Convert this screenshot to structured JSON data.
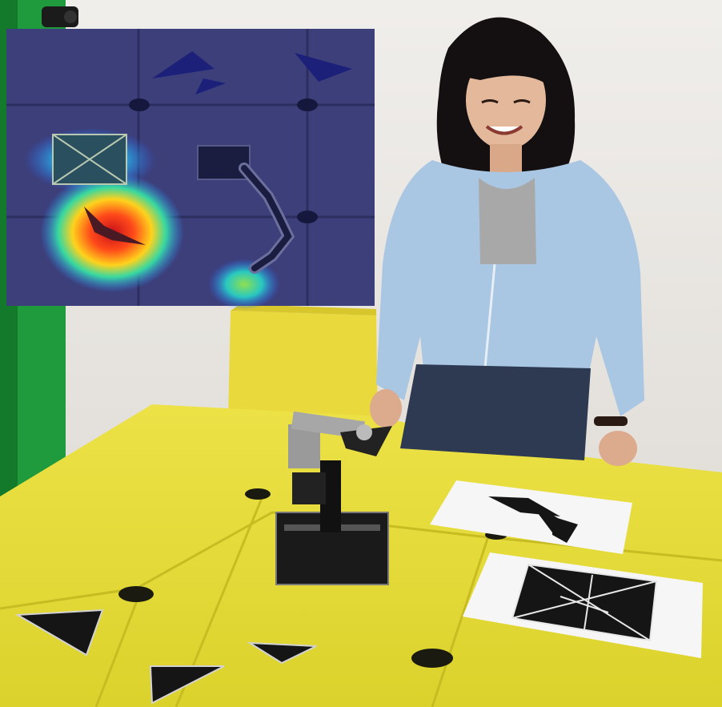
{
  "scene": {
    "kind": "photograph",
    "colors": {
      "wall": "#ece9e6",
      "green_screen": "#1f9a3c",
      "table_yellow": "#e6dd3a",
      "board_yellow": "#e9d93c",
      "hoodie": "#a9c6e2",
      "jeans": "#2e3a52",
      "tangram_black": "#151515",
      "heatmap_bg": "#3c3f7a"
    }
  },
  "heatmap_inset": {
    "icons": [
      "triangle-piece",
      "wheel-marker",
      "robot-arm",
      "tangram-target"
    ],
    "hotspots": [
      "target-board",
      "dropped-piece",
      "gripper"
    ]
  },
  "tangram_boards": [
    "partial-shape-board",
    "target-square-board"
  ],
  "table_pieces": [
    "triangle",
    "triangle",
    "triangle"
  ]
}
